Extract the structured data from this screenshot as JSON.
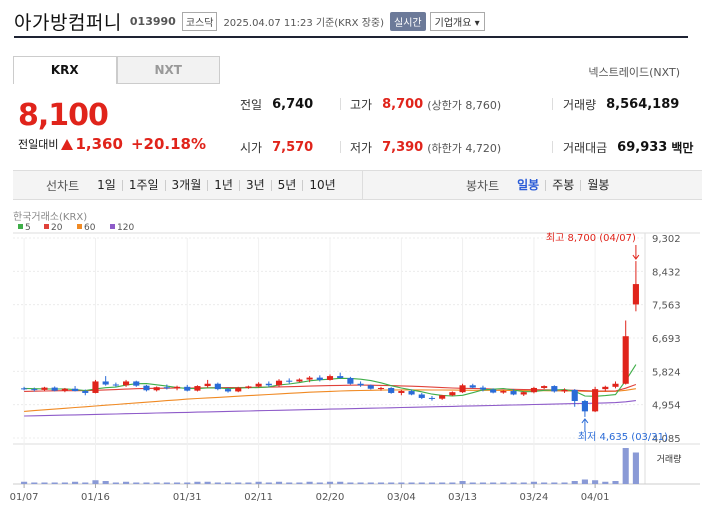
{
  "header": {
    "company": "아가방컴퍼니",
    "code": "013990",
    "market": "코스닥",
    "datetime": "2025.04.07 11:23 기준(KRX 장중)",
    "realtime": "실시간",
    "corp_info": "기업개요 ▾"
  },
  "tabs": [
    {
      "label": "KRX"
    },
    {
      "label": "NXT"
    }
  ],
  "nxt_link": "넥스트레이드(NXT)",
  "price": {
    "current": "8,100",
    "change_label": "전일대비",
    "change": "1,360",
    "percent": "+20.18%"
  },
  "info": {
    "prev_label": "전일",
    "prev": "6,740",
    "high_label": "고가",
    "high": "8,700",
    "high_sub": "(상한가 8,760)",
    "volume_label": "거래량",
    "volume": "8,564,189",
    "open_label": "시가",
    "open": "7,570",
    "low_label": "저가",
    "low": "7,390",
    "low_sub": "(하한가 4,720)",
    "amount_label": "거래대금",
    "amount": "69,933",
    "amount_unit": "백만"
  },
  "toolbar": {
    "line_label": "선차트",
    "line_items": [
      "1일",
      "1주일",
      "3개월",
      "1년",
      "3년",
      "5년",
      "10년"
    ],
    "candle_label": "봉차트",
    "candle_items": [
      "일봉",
      "주봉",
      "월봉"
    ],
    "candle_selected": 0
  },
  "chart_data": {
    "type": "candlestick",
    "source_label": "한국거래소(KRX)",
    "legend": [
      {
        "name": "5",
        "color": "#3fae49"
      },
      {
        "name": "20",
        "color": "#e0413a"
      },
      {
        "name": "60",
        "color": "#f08a24"
      },
      {
        "name": "120",
        "color": "#8e5bc9"
      }
    ],
    "y_ticks": [
      "9,302",
      "8,432",
      "7,563",
      "6,693",
      "5,824",
      "4,954",
      "4,085"
    ],
    "ylim": [
      4085,
      9302
    ],
    "x_labels": [
      "01/07",
      "01/16",
      "01/31",
      "02/11",
      "02/20",
      "03/04",
      "03/13",
      "03/24",
      "04/01"
    ],
    "x_label_index": [
      0,
      7,
      16,
      23,
      30,
      37,
      43,
      50,
      56
    ],
    "max_label": "최고 8,700 (04/07)",
    "min_label": "최저 4,635 (03/31)",
    "max_index": 60,
    "min_index": 55,
    "volume_label": "거래량",
    "up_color": "#e0241b",
    "down_color": "#2a6bd7",
    "candles": [
      [
        5380,
        5420,
        5330,
        5360
      ],
      [
        5360,
        5400,
        5300,
        5340
      ],
      [
        5340,
        5420,
        5310,
        5400
      ],
      [
        5400,
        5430,
        5300,
        5320
      ],
      [
        5320,
        5390,
        5280,
        5370
      ],
      [
        5370,
        5440,
        5300,
        5310
      ],
      [
        5310,
        5350,
        5200,
        5260
      ],
      [
        5260,
        5600,
        5250,
        5560
      ],
      [
        5560,
        5700,
        5450,
        5480
      ],
      [
        5480,
        5530,
        5420,
        5460
      ],
      [
        5460,
        5600,
        5420,
        5560
      ],
      [
        5560,
        5580,
        5420,
        5450
      ],
      [
        5450,
        5470,
        5300,
        5330
      ],
      [
        5330,
        5430,
        5300,
        5410
      ],
      [
        5410,
        5480,
        5350,
        5380
      ],
      [
        5380,
        5450,
        5330,
        5420
      ],
      [
        5420,
        5470,
        5300,
        5320
      ],
      [
        5320,
        5460,
        5300,
        5440
      ],
      [
        5440,
        5600,
        5400,
        5500
      ],
      [
        5500,
        5530,
        5330,
        5360
      ],
      [
        5360,
        5400,
        5270,
        5300
      ],
      [
        5300,
        5420,
        5280,
        5390
      ],
      [
        5390,
        5450,
        5370,
        5430
      ],
      [
        5430,
        5540,
        5400,
        5500
      ],
      [
        5500,
        5560,
        5420,
        5460
      ],
      [
        5460,
        5620,
        5420,
        5580
      ],
      [
        5580,
        5640,
        5500,
        5560
      ],
      [
        5560,
        5640,
        5540,
        5610
      ],
      [
        5610,
        5700,
        5540,
        5660
      ],
      [
        5660,
        5720,
        5560,
        5600
      ],
      [
        5600,
        5740,
        5580,
        5700
      ],
      [
        5700,
        5790,
        5630,
        5650
      ],
      [
        5650,
        5680,
        5480,
        5500
      ],
      [
        5500,
        5560,
        5420,
        5460
      ],
      [
        5460,
        5480,
        5350,
        5370
      ],
      [
        5370,
        5420,
        5320,
        5390
      ],
      [
        5390,
        5410,
        5240,
        5260
      ],
      [
        5260,
        5340,
        5200,
        5310
      ],
      [
        5310,
        5350,
        5200,
        5220
      ],
      [
        5220,
        5260,
        5100,
        5130
      ],
      [
        5130,
        5180,
        5060,
        5110
      ],
      [
        5110,
        5210,
        5080,
        5200
      ],
      [
        5200,
        5300,
        5180,
        5280
      ],
      [
        5280,
        5500,
        5260,
        5460
      ],
      [
        5460,
        5500,
        5380,
        5400
      ],
      [
        5400,
        5450,
        5300,
        5350
      ],
      [
        5350,
        5380,
        5250,
        5270
      ],
      [
        5270,
        5330,
        5240,
        5310
      ],
      [
        5310,
        5360,
        5200,
        5220
      ],
      [
        5220,
        5300,
        5180,
        5280
      ],
      [
        5280,
        5420,
        5250,
        5390
      ],
      [
        5390,
        5460,
        5360,
        5440
      ],
      [
        5440,
        5460,
        5270,
        5300
      ],
      [
        5300,
        5380,
        5260,
        5340
      ],
      [
        5340,
        5360,
        4900,
        5050
      ],
      [
        5050,
        5080,
        4635,
        4780
      ],
      [
        4780,
        5420,
        4760,
        5360
      ],
      [
        5360,
        5450,
        5300,
        5420
      ],
      [
        5420,
        5560,
        5380,
        5500
      ],
      [
        5500,
        7150,
        5480,
        6740
      ],
      [
        7570,
        8700,
        7390,
        8100
      ]
    ],
    "volumes": [
      3,
      2,
      2,
      2,
      2,
      3,
      2,
      5,
      4,
      2,
      3,
      2,
      2,
      2,
      2,
      2,
      2,
      3,
      3,
      2,
      2,
      2,
      2,
      3,
      2,
      3,
      2,
      2,
      3,
      2,
      3,
      3,
      2,
      2,
      2,
      2,
      2,
      2,
      2,
      2,
      2,
      2,
      2,
      4,
      2,
      2,
      2,
      2,
      2,
      2,
      3,
      2,
      2,
      2,
      4,
      6,
      5,
      3,
      4,
      48,
      42
    ],
    "ma5": [
      5380,
      5370,
      5365,
      5362,
      5365,
      5348,
      5323,
      5366,
      5397,
      5414,
      5465,
      5502,
      5504,
      5472,
      5440,
      5400,
      5380,
      5374,
      5392,
      5391,
      5374,
      5386,
      5397,
      5400,
      5418,
      5469,
      5494,
      5529,
      5578,
      5602,
      5620,
      5643,
      5640,
      5620,
      5583,
      5524,
      5450,
      5390,
      5340,
      5290,
      5230,
      5195,
      5180,
      5200,
      5266,
      5340,
      5357,
      5376,
      5338,
      5294,
      5296,
      5330,
      5338,
      5351,
      5306,
      5180,
      5172,
      5192,
      5218,
      5580,
      6000
    ],
    "ma20": [
      5300,
      5305,
      5310,
      5315,
      5318,
      5320,
      5322,
      5330,
      5340,
      5348,
      5360,
      5370,
      5378,
      5382,
      5385,
      5388,
      5390,
      5392,
      5395,
      5398,
      5400,
      5402,
      5404,
      5408,
      5412,
      5418,
      5424,
      5430,
      5438,
      5446,
      5452,
      5458,
      5462,
      5464,
      5462,
      5458,
      5452,
      5445,
      5436,
      5425,
      5412,
      5400,
      5390,
      5382,
      5376,
      5370,
      5364,
      5360,
      5356,
      5350,
      5346,
      5342,
      5340,
      5338,
      5330,
      5318,
      5312,
      5310,
      5312,
      5385,
      5480
    ],
    "ma60": [
      4780,
      4800,
      4820,
      4840,
      4860,
      4880,
      4900,
      4920,
      4940,
      4960,
      4980,
      5000,
      5020,
      5040,
      5060,
      5080,
      5100,
      5115,
      5130,
      5145,
      5160,
      5175,
      5190,
      5205,
      5220,
      5235,
      5250,
      5265,
      5280,
      5290,
      5300,
      5310,
      5318,
      5325,
      5330,
      5335,
      5338,
      5340,
      5340,
      5340,
      5338,
      5336,
      5334,
      5332,
      5330,
      5330,
      5328,
      5326,
      5324,
      5322,
      5320,
      5318,
      5316,
      5314,
      5310,
      5304,
      5300,
      5300,
      5302,
      5330,
      5372
    ],
    "ma120": [
      4660,
      4665,
      4670,
      4676,
      4682,
      4688,
      4694,
      4700,
      4706,
      4712,
      4718,
      4724,
      4730,
      4736,
      4742,
      4748,
      4754,
      4760,
      4766,
      4772,
      4778,
      4784,
      4790,
      4796,
      4802,
      4808,
      4814,
      4820,
      4826,
      4832,
      4838,
      4844,
      4850,
      4856,
      4862,
      4868,
      4874,
      4880,
      4886,
      4892,
      4898,
      4904,
      4910,
      4916,
      4922,
      4928,
      4934,
      4940,
      4946,
      4952,
      4958,
      4964,
      4970,
      4976,
      4982,
      4988,
      4994,
      5000,
      5008,
      5030,
      5060
    ]
  }
}
